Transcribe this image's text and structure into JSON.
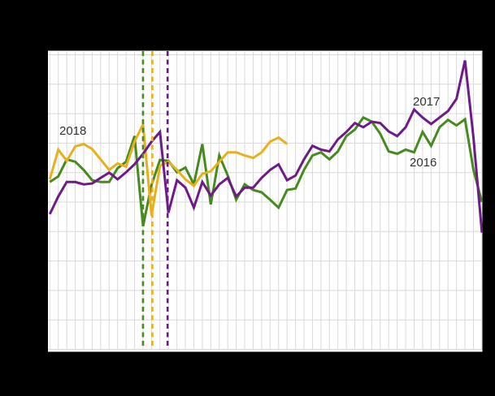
{
  "canvas": {
    "background": "#000000",
    "plot_background": "#FFFFFF",
    "grid_color": "#DADADA",
    "text_color": "#333333"
  },
  "chart_data": {
    "type": "line",
    "title": "",
    "xlabel": "",
    "ylabel": "",
    "x_axis": {
      "unit": "week",
      "min": 1,
      "max": 52,
      "gridlines": "every week",
      "tick_labels_visible": false
    },
    "y_axis": {
      "min": 0,
      "max": 100,
      "gridline_step": 10,
      "tick_labels_visible": false,
      "note": "values normalized to plot height (0-100); axis tick labels are not visible in the screenshot"
    },
    "grid": true,
    "legend_position": "none (inline year labels)",
    "series": [
      {
        "name": "2016",
        "color": "#478A1E",
        "values": [
          56.8,
          58.7,
          64.5,
          63.7,
          60.9,
          57.4,
          56.8,
          56.8,
          61.5,
          63.7,
          72.4,
          41.8,
          55.8,
          64.3,
          64.0,
          60.1,
          61.7,
          56.0,
          69.7,
          49.2,
          65.8,
          59.0,
          50.8,
          56.0,
          54.1,
          53.3,
          50.8,
          48.1,
          54.1,
          54.6,
          60.9,
          65.8,
          66.9,
          64.5,
          67.2,
          72.4,
          74.6,
          78.7,
          77.3,
          73.2,
          67.2,
          66.4,
          67.8,
          66.9,
          73.8,
          69.1,
          75.4,
          77.9,
          76.0,
          78.1,
          60.9,
          50.0
        ]
      },
      {
        "name": "2017",
        "color": "#6E1A87",
        "values": [
          45.9,
          51.9,
          56.8,
          56.8,
          56.0,
          56.3,
          58.2,
          60.0,
          57.7,
          60.1,
          62.8,
          66.4,
          70.5,
          73.8,
          46.4,
          57.4,
          54.9,
          48.1,
          56.8,
          52.2,
          56.0,
          58.2,
          51.9,
          54.9,
          54.9,
          58.2,
          60.9,
          62.8,
          57.4,
          59.0,
          64.5,
          69.1,
          67.8,
          67.2,
          71.3,
          73.8,
          76.8,
          75.4,
          77.3,
          76.8,
          74.0,
          72.4,
          75.4,
          81.4,
          78.7,
          76.5,
          78.7,
          80.9,
          85.0,
          98.1,
          71.9,
          39.6
        ]
      },
      {
        "name": "2018",
        "color": "#E9B01E",
        "values": [
          57.7,
          67.8,
          64.0,
          68.9,
          69.7,
          68.0,
          64.5,
          60.9,
          63.1,
          62.0,
          70.5,
          76.4,
          45.4,
          62.3,
          63.7,
          60.9,
          57.7,
          55.5,
          59.6,
          60.4,
          63.7,
          66.9,
          66.9,
          65.8,
          65.0,
          66.9,
          70.5,
          71.9,
          69.7
        ]
      }
    ],
    "vertical_markers": [
      {
        "label": "2016",
        "week": 12.0,
        "color": "#478A1E",
        "style": "dashed"
      },
      {
        "label": "2018",
        "week": 13.1,
        "color": "#E9B01E",
        "style": "dashed"
      },
      {
        "label": "2017",
        "week": 14.9,
        "color": "#6E1A87",
        "style": "dashed"
      }
    ],
    "annotations": [
      {
        "text": "2018",
        "week": 2.1,
        "value": 72.6
      },
      {
        "text": "2017",
        "week": 43.85,
        "value": 82.5
      },
      {
        "text": "2016",
        "week": 43.5,
        "value": 61.8
      }
    ]
  }
}
